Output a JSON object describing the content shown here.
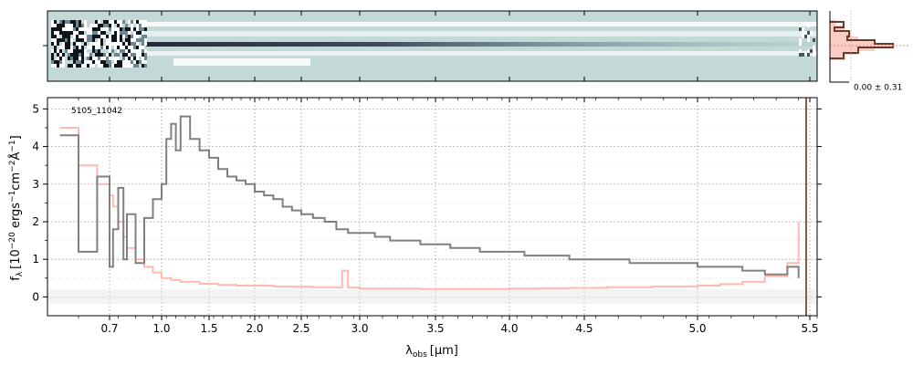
{
  "chart_data": [
    {
      "type": "heatmap",
      "panel": "2d-spectrum",
      "description_colormap": "bone_r",
      "colors": {
        "background": "#c2d9d8",
        "dark": "#1c2230",
        "light": "#ffffff"
      },
      "xlim": [
        0.6,
        5.55
      ],
      "ylim": [
        0,
        1
      ],
      "tick_labels": []
    },
    {
      "type": "histogram",
      "panel": "pixel-distribution",
      "label": "0.00 ± 0.31",
      "colors": {
        "fill": "#f8c8be",
        "outline": "#6b3a2a",
        "line": "#ff8080"
      }
    },
    {
      "type": "line",
      "panel": "1d-spectrum",
      "object_label": "5105_11042",
      "xlabel": "λobs [μm]",
      "xlabel_main": "λ",
      "xlabel_sub": "obs",
      "xlabel_unit": "[μm]",
      "ylabel": "fλ [10−20 ergs−1cm−2Å−1]",
      "ylabel_main": "f",
      "ylabel_sub": "λ",
      "ylabel_unit": "[10",
      "ylabel_exp1": "−20",
      "ylabel_mid1": " ergs",
      "ylabel_exp2": "−1",
      "ylabel_mid2": "cm",
      "ylabel_exp3": "−2",
      "ylabel_mid3": "Å",
      "ylabel_exp4": "−1",
      "ylabel_end": "]",
      "x_scale": "custom (approx. log)",
      "xlim": [
        0.6,
        5.55
      ],
      "ylim": [
        -0.5,
        5.3
      ],
      "grid": true,
      "x_ticks": [
        {
          "value": 0.7,
          "label": "0.7"
        },
        {
          "value": 1.0,
          "label": "1.0"
        },
        {
          "value": 1.5,
          "label": "1.5"
        },
        {
          "value": 2.0,
          "label": "2.0"
        },
        {
          "value": 2.5,
          "label": "2.5"
        },
        {
          "value": 3.0,
          "label": "3.0"
        },
        {
          "value": 3.5,
          "label": "3.5"
        },
        {
          "value": 4.0,
          "label": "4.0"
        },
        {
          "value": 4.5,
          "label": "4.5"
        },
        {
          "value": 5.0,
          "label": "5.0"
        },
        {
          "value": 5.5,
          "label": "5.5"
        }
      ],
      "y_ticks": [
        {
          "value": 0,
          "label": "0"
        },
        {
          "value": 1,
          "label": "1"
        },
        {
          "value": 2,
          "label": "2"
        },
        {
          "value": 3,
          "label": "3"
        },
        {
          "value": 4,
          "label": "4"
        },
        {
          "value": 5,
          "label": "5"
        }
      ],
      "series": [
        {
          "role": "flux",
          "color": "#808080",
          "x": [
            0.62,
            0.65,
            0.68,
            0.7,
            0.72,
            0.75,
            0.78,
            0.8,
            0.85,
            0.9,
            0.95,
            1.0,
            1.05,
            1.1,
            1.15,
            1.2,
            1.3,
            1.4,
            1.5,
            1.6,
            1.7,
            1.8,
            1.9,
            2.0,
            2.1,
            2.2,
            2.3,
            2.4,
            2.5,
            2.6,
            2.7,
            2.8,
            2.9,
            3.0,
            3.1,
            3.2,
            3.3,
            3.4,
            3.5,
            3.6,
            3.7,
            3.8,
            3.9,
            4.0,
            4.1,
            4.2,
            4.3,
            4.4,
            4.5,
            4.6,
            4.7,
            4.8,
            4.9,
            5.0,
            5.1,
            5.2,
            5.3,
            5.4,
            5.45
          ],
          "y": [
            4.3,
            1.2,
            3.2,
            0.8,
            1.8,
            2.9,
            1.0,
            2.2,
            0.9,
            2.1,
            2.6,
            3.0,
            4.2,
            4.6,
            3.9,
            4.8,
            4.2,
            3.9,
            3.7,
            3.4,
            3.2,
            3.1,
            3.0,
            2.8,
            2.7,
            2.6,
            2.4,
            2.3,
            2.2,
            2.1,
            2.0,
            1.8,
            1.7,
            1.7,
            1.6,
            1.5,
            1.5,
            1.4,
            1.4,
            1.3,
            1.3,
            1.2,
            1.2,
            1.2,
            1.1,
            1.1,
            1.1,
            1.0,
            1.0,
            1.0,
            0.9,
            0.9,
            0.9,
            0.8,
            0.8,
            0.7,
            0.6,
            0.8,
            0.5
          ]
        },
        {
          "role": "error",
          "color": "#ffb9b3",
          "x": [
            0.62,
            0.65,
            0.68,
            0.7,
            0.72,
            0.75,
            0.78,
            0.8,
            0.85,
            0.9,
            0.95,
            1.0,
            1.1,
            1.2,
            1.4,
            1.6,
            1.8,
            2.0,
            2.2,
            2.4,
            2.6,
            2.8,
            2.85,
            2.9,
            3.0,
            3.2,
            3.4,
            3.6,
            3.8,
            4.0,
            4.2,
            4.4,
            4.6,
            4.8,
            5.0,
            5.1,
            5.2,
            5.3,
            5.4,
            5.45
          ],
          "y": [
            4.5,
            3.5,
            3.0,
            2.7,
            2.4,
            2.0,
            1.6,
            1.3,
            1.0,
            0.8,
            0.65,
            0.5,
            0.45,
            0.4,
            0.35,
            0.32,
            0.3,
            0.3,
            0.28,
            0.27,
            0.26,
            0.25,
            0.7,
            0.25,
            0.22,
            0.22,
            0.21,
            0.21,
            0.21,
            0.22,
            0.23,
            0.24,
            0.26,
            0.28,
            0.3,
            0.34,
            0.4,
            0.55,
            0.9,
            2.0
          ]
        }
      ]
    }
  ]
}
